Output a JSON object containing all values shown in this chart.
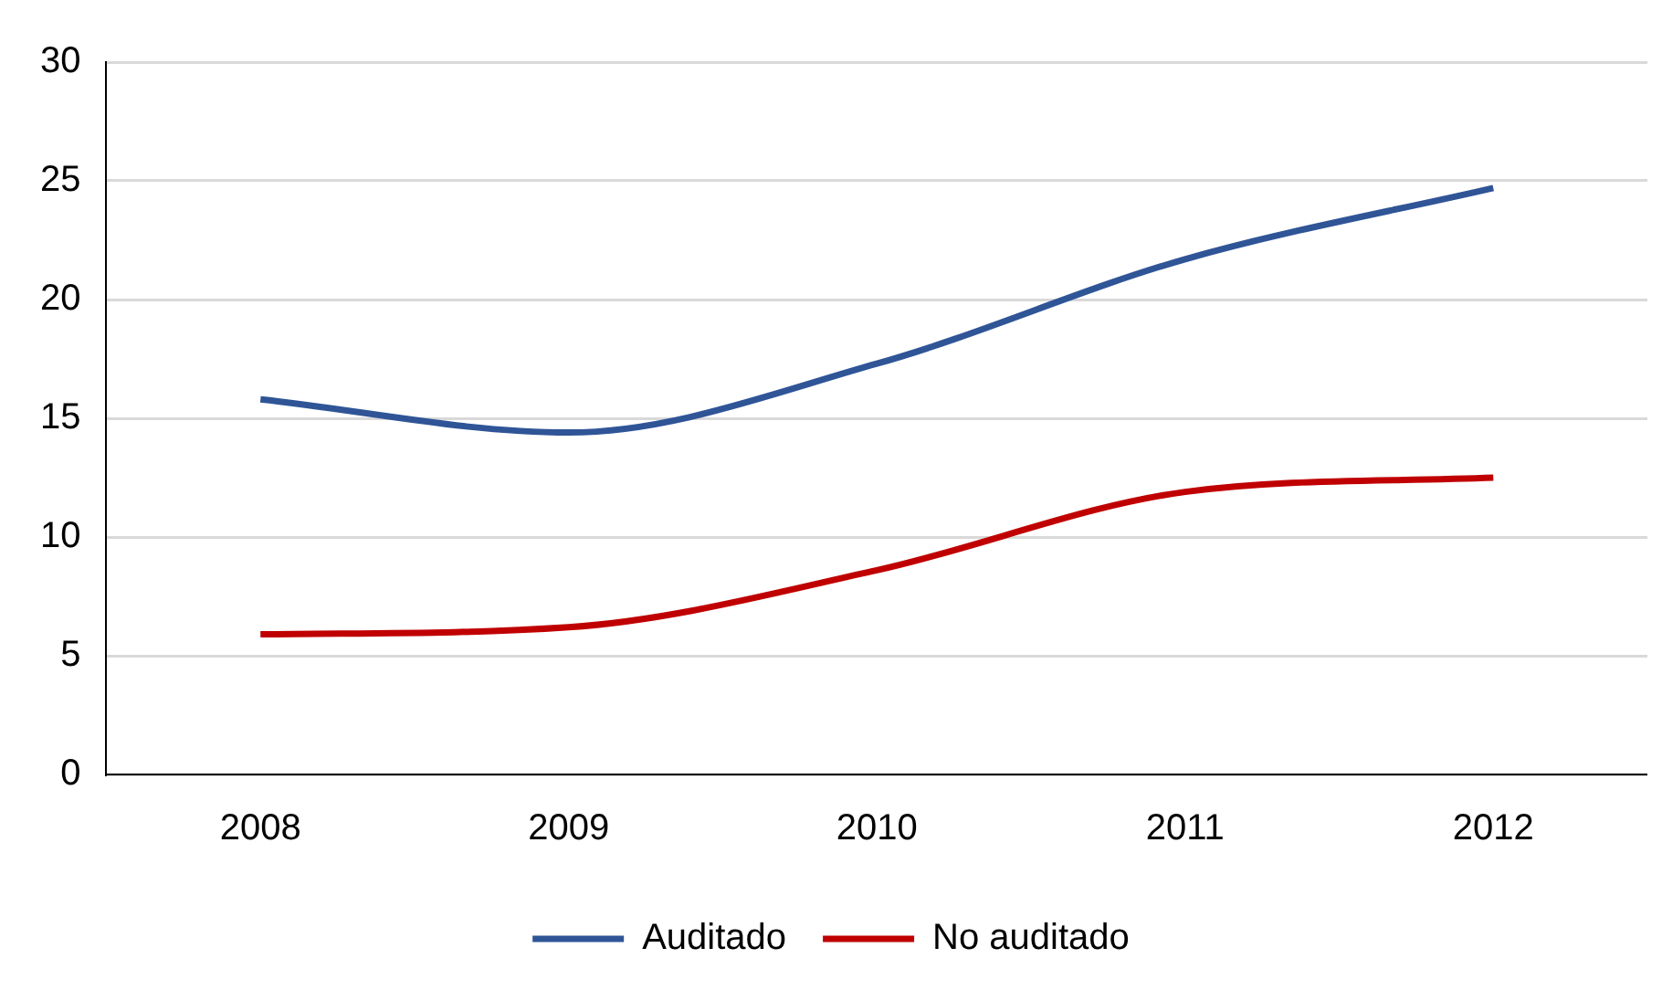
{
  "chart_data": {
    "type": "line",
    "categories": [
      "2008",
      "2009",
      "2010",
      "2011",
      "2012"
    ],
    "series": [
      {
        "name": "Auditado",
        "color": "#2f5597",
        "values": [
          15.8,
          14.4,
          17.3,
          21.7,
          24.7
        ]
      },
      {
        "name": "No auditado",
        "color": "#c00000",
        "values": [
          5.9,
          6.2,
          8.6,
          11.9,
          12.5
        ]
      }
    ],
    "ylim": [
      0,
      30
    ],
    "yticks": [
      0,
      5,
      10,
      15,
      20,
      25,
      30
    ],
    "grid": "y",
    "legend": "bottom",
    "marker": "none",
    "line_style": "solid"
  }
}
